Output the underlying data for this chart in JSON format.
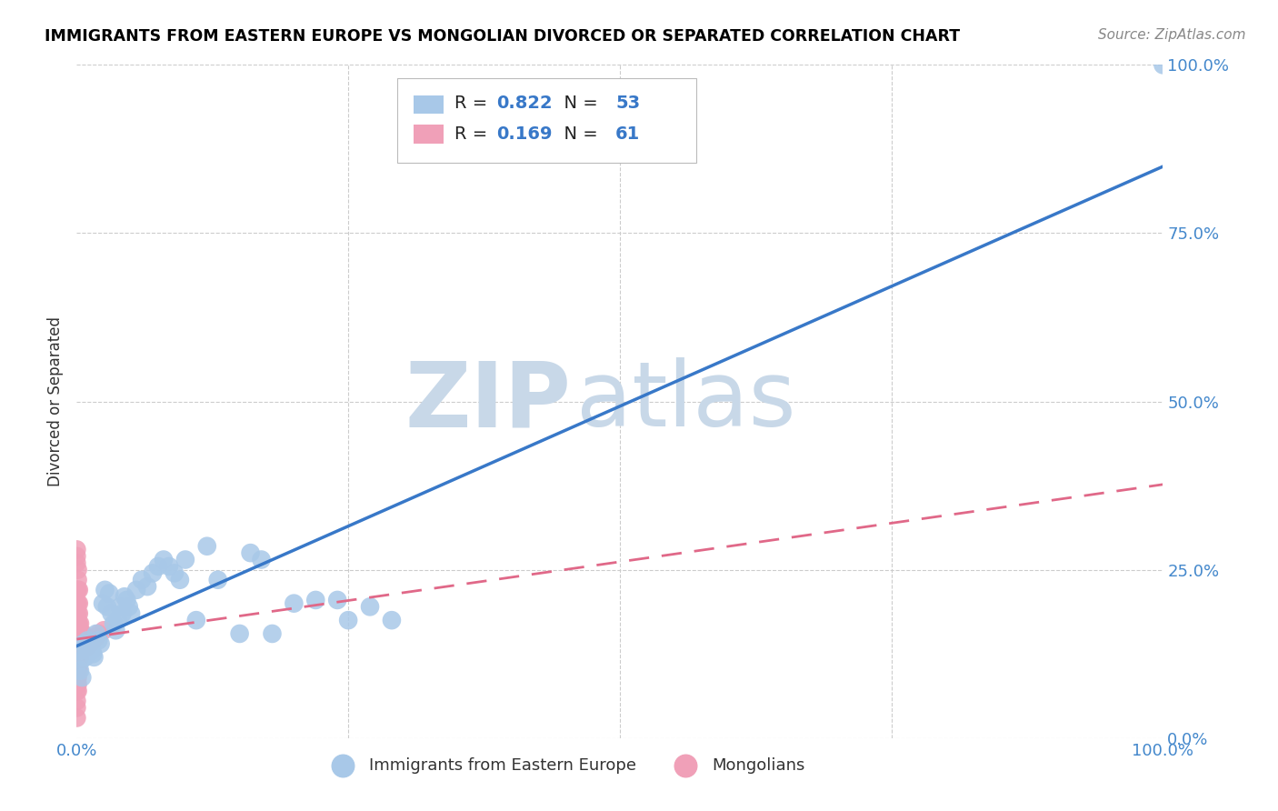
{
  "title": "IMMIGRANTS FROM EASTERN EUROPE VS MONGOLIAN DIVORCED OR SEPARATED CORRELATION CHART",
  "source": "Source: ZipAtlas.com",
  "ylabel": "Divorced or Separated",
  "xlim": [
    0,
    1.0
  ],
  "ylim": [
    0,
    1.0
  ],
  "ytick_labels": [
    "0.0%",
    "25.0%",
    "50.0%",
    "75.0%",
    "100.0%"
  ],
  "ytick_values": [
    0.0,
    0.25,
    0.5,
    0.75,
    1.0
  ],
  "blue_R": "0.822",
  "blue_N": "53",
  "pink_R": "0.169",
  "pink_N": "61",
  "blue_color": "#a8c8e8",
  "blue_line_color": "#3878c8",
  "pink_color": "#f0a0b8",
  "pink_line_color": "#e06888",
  "blue_scatter": [
    [
      0.002,
      0.13
    ],
    [
      0.003,
      0.1
    ],
    [
      0.004,
      0.115
    ],
    [
      0.005,
      0.09
    ],
    [
      0.006,
      0.14
    ],
    [
      0.008,
      0.12
    ],
    [
      0.009,
      0.13
    ],
    [
      0.01,
      0.145
    ],
    [
      0.012,
      0.14
    ],
    [
      0.014,
      0.13
    ],
    [
      0.015,
      0.125
    ],
    [
      0.016,
      0.12
    ],
    [
      0.018,
      0.155
    ],
    [
      0.02,
      0.145
    ],
    [
      0.022,
      0.14
    ],
    [
      0.024,
      0.2
    ],
    [
      0.026,
      0.22
    ],
    [
      0.028,
      0.195
    ],
    [
      0.03,
      0.215
    ],
    [
      0.032,
      0.185
    ],
    [
      0.034,
      0.17
    ],
    [
      0.036,
      0.16
    ],
    [
      0.038,
      0.175
    ],
    [
      0.04,
      0.195
    ],
    [
      0.042,
      0.185
    ],
    [
      0.044,
      0.21
    ],
    [
      0.046,
      0.205
    ],
    [
      0.048,
      0.195
    ],
    [
      0.05,
      0.185
    ],
    [
      0.055,
      0.22
    ],
    [
      0.06,
      0.235
    ],
    [
      0.065,
      0.225
    ],
    [
      0.07,
      0.245
    ],
    [
      0.075,
      0.255
    ],
    [
      0.08,
      0.265
    ],
    [
      0.085,
      0.255
    ],
    [
      0.09,
      0.245
    ],
    [
      0.095,
      0.235
    ],
    [
      0.1,
      0.265
    ],
    [
      0.11,
      0.175
    ],
    [
      0.12,
      0.285
    ],
    [
      0.13,
      0.235
    ],
    [
      0.15,
      0.155
    ],
    [
      0.16,
      0.275
    ],
    [
      0.17,
      0.265
    ],
    [
      0.18,
      0.155
    ],
    [
      0.2,
      0.2
    ],
    [
      0.22,
      0.205
    ],
    [
      0.24,
      0.205
    ],
    [
      0.25,
      0.175
    ],
    [
      0.27,
      0.195
    ],
    [
      0.29,
      0.175
    ],
    [
      1.0,
      1.0
    ]
  ],
  "pink_scatter": [
    [
      0.0,
      0.26
    ],
    [
      0.0,
      0.27
    ],
    [
      0.0,
      0.28
    ],
    [
      0.0,
      0.22
    ],
    [
      0.0,
      0.2
    ],
    [
      0.0,
      0.18
    ],
    [
      0.0,
      0.155
    ],
    [
      0.0,
      0.145
    ],
    [
      0.0,
      0.135
    ],
    [
      0.0,
      0.125
    ],
    [
      0.0,
      0.11
    ],
    [
      0.0,
      0.1
    ],
    [
      0.0,
      0.09
    ],
    [
      0.0,
      0.08
    ],
    [
      0.0,
      0.07
    ],
    [
      0.0,
      0.055
    ],
    [
      0.0,
      0.045
    ],
    [
      0.0,
      0.03
    ],
    [
      0.001,
      0.25
    ],
    [
      0.001,
      0.235
    ],
    [
      0.001,
      0.22
    ],
    [
      0.001,
      0.2
    ],
    [
      0.001,
      0.185
    ],
    [
      0.001,
      0.17
    ],
    [
      0.001,
      0.155
    ],
    [
      0.001,
      0.14
    ],
    [
      0.001,
      0.13
    ],
    [
      0.001,
      0.12
    ],
    [
      0.001,
      0.11
    ],
    [
      0.001,
      0.1
    ],
    [
      0.001,
      0.09
    ],
    [
      0.001,
      0.08
    ],
    [
      0.001,
      0.07
    ],
    [
      0.002,
      0.22
    ],
    [
      0.002,
      0.2
    ],
    [
      0.002,
      0.185
    ],
    [
      0.002,
      0.17
    ],
    [
      0.002,
      0.155
    ],
    [
      0.002,
      0.14
    ],
    [
      0.002,
      0.13
    ],
    [
      0.002,
      0.12
    ],
    [
      0.002,
      0.1
    ],
    [
      0.003,
      0.17
    ],
    [
      0.003,
      0.155
    ],
    [
      0.003,
      0.14
    ],
    [
      0.003,
      0.13
    ],
    [
      0.003,
      0.12
    ],
    [
      0.004,
      0.155
    ],
    [
      0.004,
      0.14
    ],
    [
      0.005,
      0.155
    ],
    [
      0.005,
      0.14
    ],
    [
      0.006,
      0.155
    ],
    [
      0.007,
      0.14
    ],
    [
      0.008,
      0.145
    ],
    [
      0.009,
      0.135
    ],
    [
      0.01,
      0.145
    ],
    [
      0.012,
      0.14
    ],
    [
      0.015,
      0.145
    ],
    [
      0.018,
      0.15
    ],
    [
      0.02,
      0.155
    ],
    [
      0.025,
      0.16
    ]
  ],
  "watermark_top": "ZIP",
  "watermark_bottom": "atlas",
  "watermark_color_top": "#c8d8e8",
  "watermark_color_bottom": "#c8d8e8",
  "grid_color": "#cccccc",
  "background_color": "#ffffff"
}
